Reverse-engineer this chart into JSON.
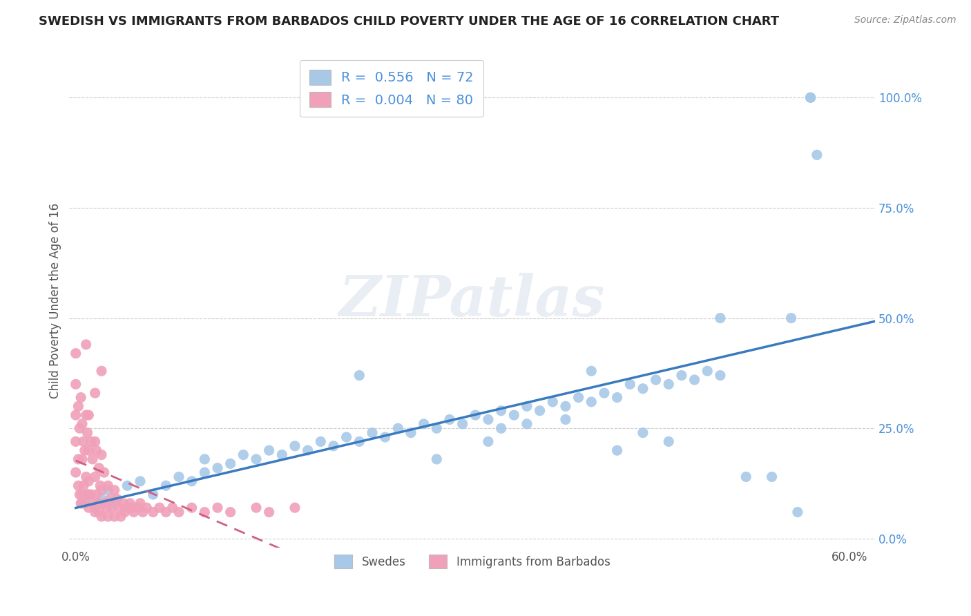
{
  "title": "SWEDISH VS IMMIGRANTS FROM BARBADOS CHILD POVERTY UNDER THE AGE OF 16 CORRELATION CHART",
  "source": "Source: ZipAtlas.com",
  "ylabel": "Child Poverty Under the Age of 16",
  "xlim": [
    -0.005,
    0.62
  ],
  "ylim": [
    -0.02,
    1.1
  ],
  "yticks": [
    0.0,
    0.25,
    0.5,
    0.75,
    1.0
  ],
  "ytick_labels": [
    "0.0%",
    "25.0%",
    "50.0%",
    "75.0%",
    "100.0%"
  ],
  "xticks": [
    0.0,
    0.1,
    0.2,
    0.3,
    0.4,
    0.5,
    0.6
  ],
  "xtick_labels": [
    "0.0%",
    "",
    "",
    "",
    "",
    "",
    "60.0%"
  ],
  "swedes_R": 0.556,
  "swedes_N": 72,
  "barbados_R": 0.004,
  "barbados_N": 80,
  "blue_color": "#a8c8e8",
  "pink_color": "#f0a0b8",
  "blue_line_color": "#3a7abf",
  "pink_line_color": "#d06080",
  "legend_label_swedes": "Swedes",
  "legend_label_barbados": "Immigrants from Barbados",
  "background_color": "#ffffff",
  "watermark": "ZIPatlas",
  "grid_color": "#d0d0d0",
  "tick_color": "#4a90d9",
  "title_color": "#222222",
  "label_color": "#555555",
  "swedes_x": [
    0.005,
    0.01,
    0.015,
    0.02,
    0.025,
    0.03,
    0.04,
    0.05,
    0.06,
    0.07,
    0.08,
    0.09,
    0.1,
    0.1,
    0.11,
    0.12,
    0.13,
    0.14,
    0.15,
    0.16,
    0.17,
    0.18,
    0.19,
    0.2,
    0.21,
    0.22,
    0.23,
    0.24,
    0.25,
    0.26,
    0.27,
    0.28,
    0.29,
    0.3,
    0.31,
    0.32,
    0.33,
    0.34,
    0.35,
    0.36,
    0.37,
    0.38,
    0.39,
    0.4,
    0.41,
    0.42,
    0.43,
    0.44,
    0.45,
    0.46,
    0.47,
    0.48,
    0.49,
    0.5,
    0.33,
    0.35,
    0.38,
    0.4,
    0.42,
    0.44,
    0.46,
    0.5,
    0.52,
    0.54,
    0.56,
    0.57,
    0.57,
    0.575,
    0.555,
    0.22,
    0.28,
    0.32
  ],
  "swedes_y": [
    0.08,
    0.1,
    0.07,
    0.09,
    0.11,
    0.08,
    0.12,
    0.13,
    0.1,
    0.12,
    0.14,
    0.13,
    0.15,
    0.18,
    0.16,
    0.17,
    0.19,
    0.18,
    0.2,
    0.19,
    0.21,
    0.2,
    0.22,
    0.21,
    0.23,
    0.22,
    0.24,
    0.23,
    0.25,
    0.24,
    0.26,
    0.25,
    0.27,
    0.26,
    0.28,
    0.27,
    0.29,
    0.28,
    0.3,
    0.29,
    0.31,
    0.3,
    0.32,
    0.31,
    0.33,
    0.32,
    0.35,
    0.34,
    0.36,
    0.35,
    0.37,
    0.36,
    0.38,
    0.37,
    0.25,
    0.26,
    0.27,
    0.38,
    0.2,
    0.24,
    0.22,
    0.5,
    0.14,
    0.14,
    0.06,
    1.0,
    1.0,
    0.87,
    0.5,
    0.37,
    0.18,
    0.22
  ],
  "barbados_x": [
    0.0,
    0.0,
    0.0,
    0.0,
    0.0,
    0.002,
    0.002,
    0.002,
    0.003,
    0.003,
    0.004,
    0.004,
    0.005,
    0.005,
    0.005,
    0.006,
    0.006,
    0.007,
    0.007,
    0.008,
    0.008,
    0.009,
    0.009,
    0.01,
    0.01,
    0.01,
    0.01,
    0.012,
    0.012,
    0.013,
    0.013,
    0.015,
    0.015,
    0.015,
    0.016,
    0.016,
    0.017,
    0.018,
    0.018,
    0.019,
    0.02,
    0.02,
    0.02,
    0.022,
    0.022,
    0.024,
    0.025,
    0.025,
    0.027,
    0.028,
    0.03,
    0.03,
    0.032,
    0.034,
    0.035,
    0.037,
    0.038,
    0.04,
    0.042,
    0.044,
    0.045,
    0.048,
    0.05,
    0.052,
    0.055,
    0.06,
    0.065,
    0.07,
    0.075,
    0.08,
    0.09,
    0.1,
    0.11,
    0.12,
    0.14,
    0.15,
    0.17,
    0.02,
    0.015,
    0.008
  ],
  "barbados_y": [
    0.15,
    0.22,
    0.28,
    0.35,
    0.42,
    0.12,
    0.18,
    0.3,
    0.1,
    0.25,
    0.08,
    0.32,
    0.1,
    0.18,
    0.26,
    0.12,
    0.22,
    0.08,
    0.2,
    0.14,
    0.28,
    0.1,
    0.24,
    0.07,
    0.13,
    0.2,
    0.28,
    0.1,
    0.22,
    0.08,
    0.18,
    0.06,
    0.14,
    0.22,
    0.1,
    0.2,
    0.08,
    0.06,
    0.16,
    0.12,
    0.05,
    0.11,
    0.19,
    0.08,
    0.15,
    0.07,
    0.05,
    0.12,
    0.09,
    0.07,
    0.05,
    0.11,
    0.09,
    0.07,
    0.05,
    0.08,
    0.06,
    0.07,
    0.08,
    0.07,
    0.06,
    0.07,
    0.08,
    0.06,
    0.07,
    0.06,
    0.07,
    0.06,
    0.07,
    0.06,
    0.07,
    0.06,
    0.07,
    0.06,
    0.07,
    0.06,
    0.07,
    0.38,
    0.33,
    0.44
  ]
}
